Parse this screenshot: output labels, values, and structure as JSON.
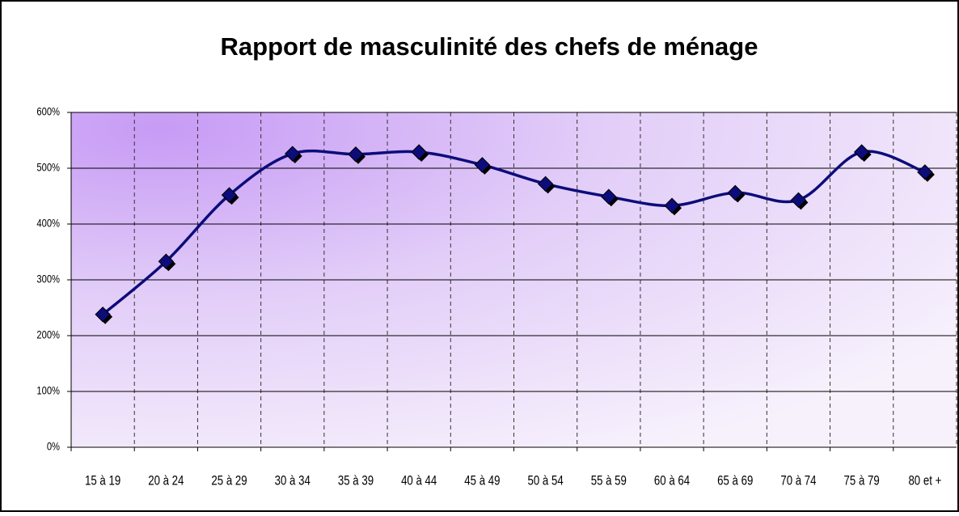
{
  "chart_data": {
    "type": "line",
    "title": "Rapport de masculinité des chefs de ménage",
    "categories": [
      "15 à 19",
      "20 à 24",
      "25 à 29",
      "30 à 34",
      "35 à 39",
      "40 à 44",
      "45 à 49",
      "50 à 54",
      "55 à 59",
      "60 à 64",
      "65 à 69",
      "70 à 74",
      "75 à 79",
      "80 et +"
    ],
    "series": [
      {
        "color": "#0c0c7a",
        "values": [
          238,
          333,
          452,
          526,
          525,
          529,
          506,
          472,
          449,
          433,
          456,
          443,
          529,
          493
        ]
      }
    ],
    "ylim": [
      0,
      600
    ],
    "yticks": [
      {
        "value": 0,
        "label": "0%"
      },
      {
        "value": 100,
        "label": "100%"
      },
      {
        "value": 200,
        "label": "200%"
      },
      {
        "value": 300,
        "label": "300%"
      },
      {
        "value": 400,
        "label": "400%"
      },
      {
        "value": 500,
        "label": "500%"
      },
      {
        "value": 600,
        "label": "600%"
      }
    ],
    "grid": true,
    "smooth": true
  }
}
